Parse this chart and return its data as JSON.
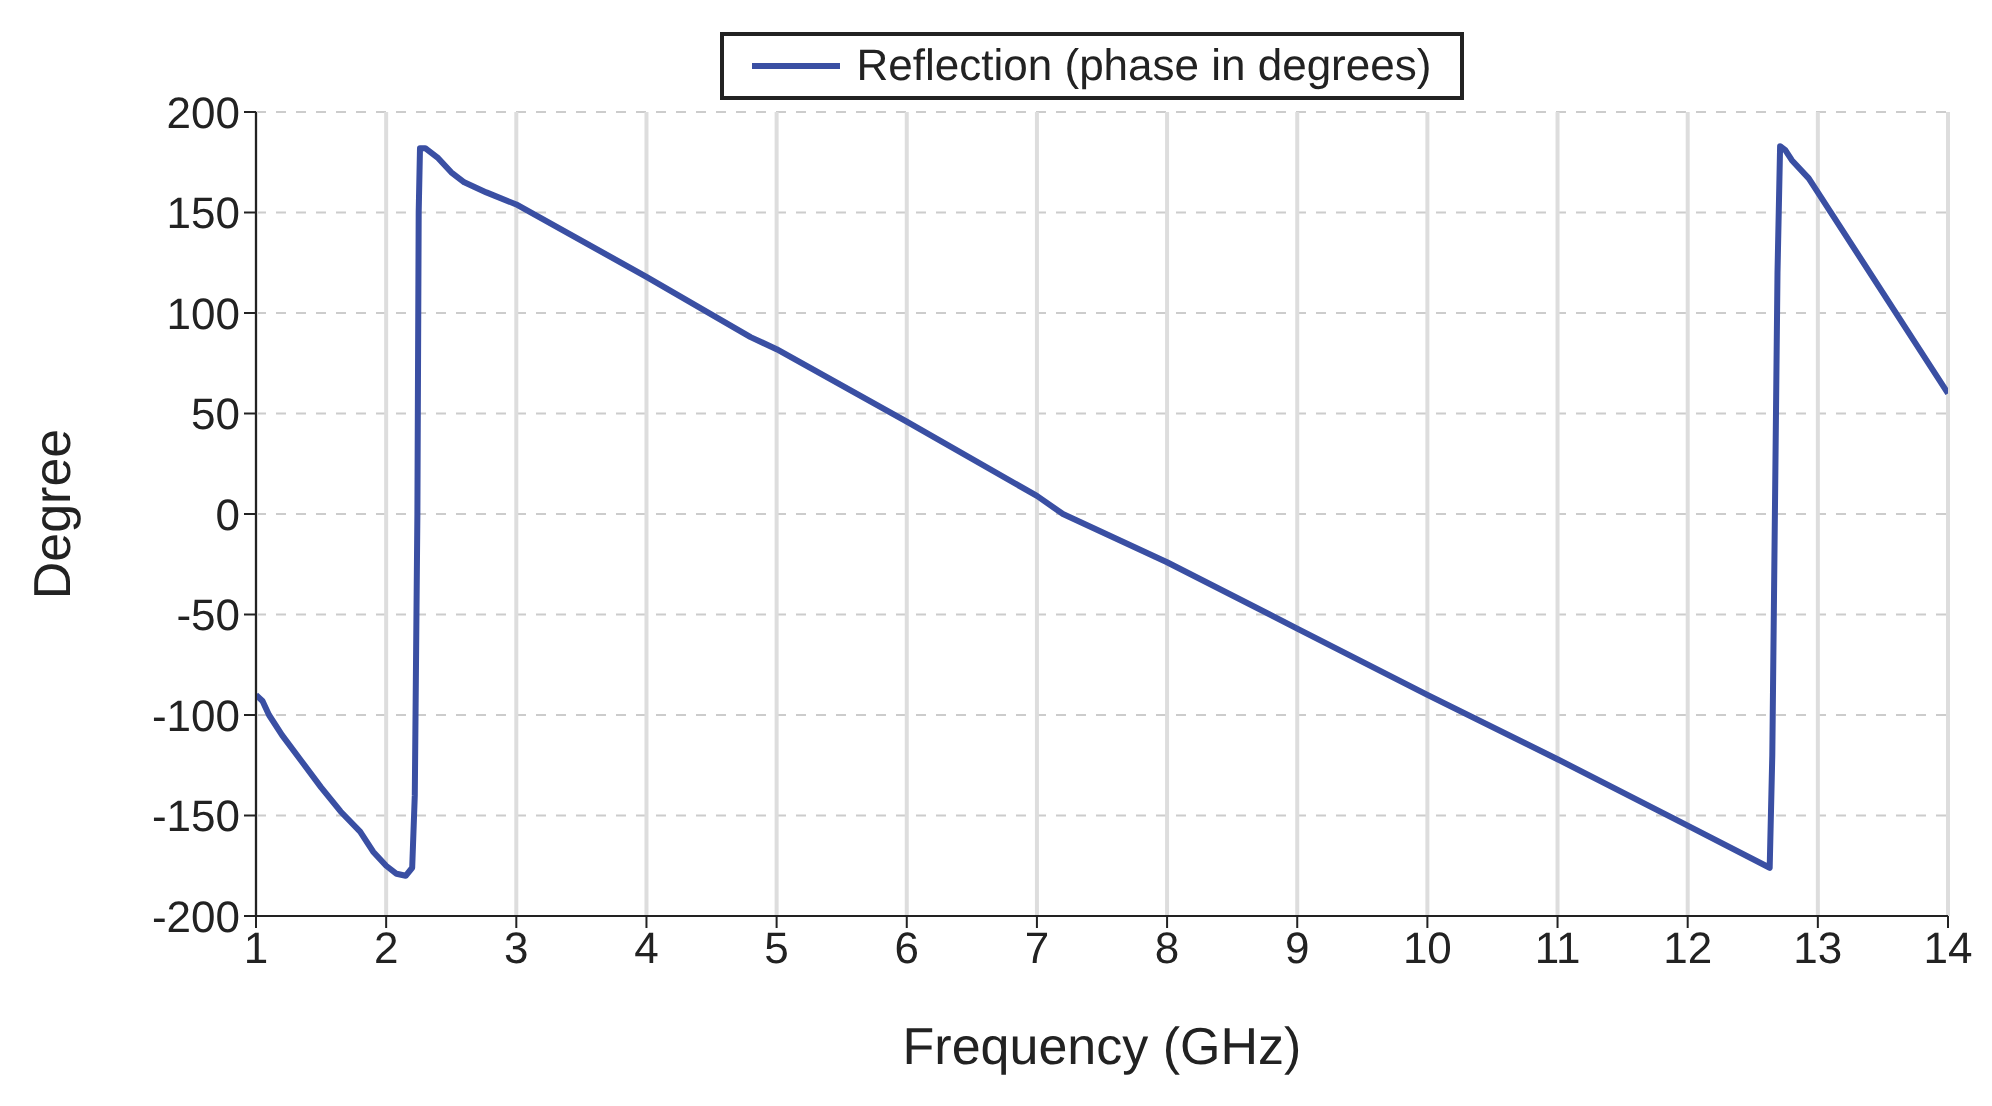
{
  "chart_data": {
    "type": "line",
    "xlabel": "Frequency (GHz)",
    "ylabel": "Degree",
    "x": [
      1,
      1.05,
      1.1,
      1.2,
      1.35,
      1.5,
      1.65,
      1.8,
      1.9,
      2.0,
      2.08,
      2.15,
      2.2,
      2.22,
      2.24,
      2.25,
      2.26,
      2.3,
      2.4,
      2.5,
      2.6,
      2.77,
      3,
      4,
      4.8,
      5,
      6,
      7,
      7.2,
      8,
      9,
      10,
      11,
      12,
      12.63,
      12.65,
      12.67,
      12.69,
      12.71,
      12.75,
      12.8,
      12.93,
      13,
      14
    ],
    "series": [
      {
        "name": "Reflection (phase in degrees)",
        "color": "#3a4fa3",
        "values": [
          -90,
          -93,
          -100,
          -110,
          -123,
          -136,
          -148,
          -158,
          -168,
          -175,
          -179,
          -180,
          -176,
          -140,
          0,
          150,
          182,
          182,
          177,
          170,
          165,
          160,
          154,
          118,
          88,
          82,
          46,
          9,
          0,
          -24,
          -57,
          -90,
          -122,
          -155,
          -176,
          -120,
          0,
          120,
          183,
          181,
          176,
          167,
          160,
          60
        ]
      }
    ],
    "xlim": [
      1,
      14
    ],
    "xticks": [
      1,
      2,
      3,
      4,
      5,
      6,
      7,
      8,
      9,
      10,
      11,
      12,
      13,
      14
    ],
    "ylim": [
      -200,
      200
    ],
    "yticks": [
      -200,
      -150,
      -100,
      -50,
      0,
      50,
      100,
      150,
      200
    ],
    "grid": true,
    "legend": "top",
    "marker": "none",
    "line_style": "solid"
  }
}
